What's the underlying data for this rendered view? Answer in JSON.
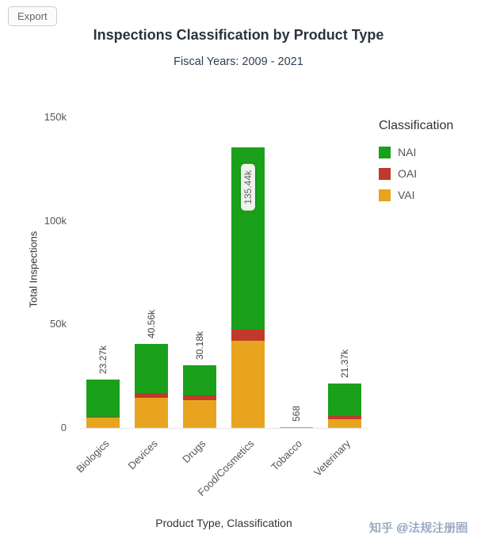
{
  "toolbar": {
    "export_label": "Export"
  },
  "header": {
    "title": "Inspections Classification by Product Type",
    "subtitle": "Fiscal Years: 2009 - 2021"
  },
  "chart_data": {
    "type": "bar",
    "stacked": true,
    "title": "Inspections Classification by Product Type",
    "subtitle": "Fiscal Years: 2009 - 2021",
    "xlabel": "Product Type, Classification",
    "ylabel": "Total Inspections",
    "ylim": [
      0,
      150000
    ],
    "grid": false,
    "legend_position": "right",
    "yticks": [
      {
        "value": 0,
        "label": "0"
      },
      {
        "value": 50000,
        "label": "50k"
      },
      {
        "value": 100000,
        "label": "100k"
      },
      {
        "value": 150000,
        "label": "150k"
      }
    ],
    "categories": [
      "Biologics",
      "Devices",
      "Drugs",
      "Food/Cosmetics",
      "Tobacco",
      "Veterinary"
    ],
    "totals": [
      23270,
      40560,
      30180,
      135440,
      568,
      21370
    ],
    "totals_labels": [
      "23.27k",
      "40.56k",
      "30.18k",
      "135.44k",
      "568",
      "21.37k"
    ],
    "label_inside": [
      false,
      false,
      false,
      true,
      false,
      false
    ],
    "series": [
      {
        "name": "VAI",
        "color": "#e8a41f",
        "values": [
          4800,
          14600,
          13500,
          42000,
          300,
          4100
        ]
      },
      {
        "name": "OAI",
        "color": "#c0392b",
        "values": [
          600,
          2300,
          2300,
          5400,
          30,
          1500
        ]
      },
      {
        "name": "NAI",
        "color": "#1aa01a",
        "values": [
          17870,
          23660,
          14380,
          88040,
          238,
          15770
        ]
      }
    ],
    "legend": {
      "title": "Classification",
      "entries": [
        {
          "name": "NAI",
          "color": "#1aa01a"
        },
        {
          "name": "OAI",
          "color": "#c0392b"
        },
        {
          "name": "VAI",
          "color": "#e8a41f"
        }
      ]
    }
  },
  "watermark": {
    "text": "知乎 @法规注册圈"
  }
}
